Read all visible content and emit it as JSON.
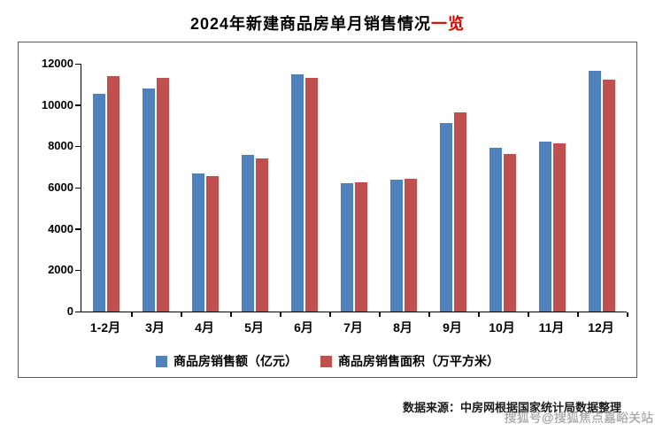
{
  "title": {
    "main": "2024年新建商品房单月销售情况",
    "accent": "一览"
  },
  "chart_data": {
    "type": "bar",
    "title": "2024年新建商品房单月销售情况一览",
    "categories": [
      "1-2月",
      "3月",
      "4月",
      "5月",
      "6月",
      "7月",
      "8月",
      "9月",
      "10月",
      "11月",
      "12月"
    ],
    "series": [
      {
        "name": "商品房销售额（亿元）",
        "color": "#4F81BD",
        "values": [
          10550,
          10800,
          6700,
          7600,
          11500,
          6200,
          6400,
          9150,
          7950,
          8250,
          11650
        ]
      },
      {
        "name": "商品房销售面积（万平方米）",
        "color": "#C0504D",
        "values": [
          11400,
          11300,
          6550,
          7400,
          11300,
          6250,
          6450,
          9650,
          7650,
          8150,
          11250
        ]
      }
    ],
    "xlabel": "",
    "ylabel": "",
    "ylim": [
      0,
      12000
    ],
    "yticks": [
      0,
      2000,
      4000,
      6000,
      8000,
      10000,
      12000
    ],
    "grid": false,
    "legend_position": "bottom"
  },
  "footer": {
    "source": "数据来源：中房网根据国家统计局数据整理",
    "watermark": "搜狐号@搜狐焦点嘉峪关站"
  }
}
